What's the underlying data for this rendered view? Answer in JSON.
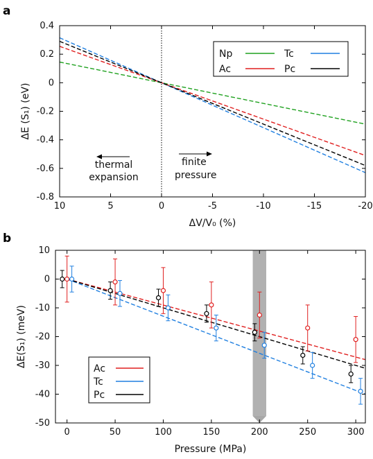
{
  "chart_data": [
    {
      "panel": "a",
      "type": "line",
      "xlabel": "ΔV/V₀ (%)",
      "ylabel": "ΔE (S₁) (eV)",
      "xlim": [
        10,
        -20
      ],
      "ylim": [
        -0.8,
        0.4
      ],
      "xticks": [
        10,
        5,
        0,
        -5,
        -10,
        -15,
        -20
      ],
      "xtick_labels": [
        "10",
        "5",
        "0",
        "-5",
        "-10",
        "-15",
        "-20"
      ],
      "yticks": [
        0.4,
        0.2,
        0,
        -0.2,
        -0.4,
        -0.6,
        -0.8
      ],
      "ytick_labels": [
        "0.4",
        "0.2",
        "0",
        "-0.2",
        "-0.4",
        "-0.6",
        "-0.8"
      ],
      "vline_x": 0,
      "annotations": [
        {
          "lines": [
            "thermal",
            "expansion"
          ],
          "arrow": "left"
        },
        {
          "lines": [
            "finite",
            "pressure"
          ],
          "arrow": "right"
        }
      ],
      "legend": {
        "placement": "top-right",
        "columns": 2
      },
      "series": [
        {
          "name": "Np",
          "color": "#1fa11f",
          "x": [
            10,
            -20
          ],
          "y": [
            0.145,
            -0.29
          ]
        },
        {
          "name": "Tc",
          "color": "#1f7fe0",
          "x": [
            10,
            -20
          ],
          "y": [
            0.315,
            -0.63
          ]
        },
        {
          "name": "Ac",
          "color": "#e01f1f",
          "x": [
            10,
            -20
          ],
          "y": [
            0.255,
            -0.51
          ]
        },
        {
          "name": "Pc",
          "color": "#000000",
          "x": [
            10,
            -20
          ],
          "y": [
            0.29,
            -0.58
          ]
        }
      ]
    },
    {
      "panel": "b",
      "type": "scatter",
      "xlabel": "Pressure (MPa)",
      "ylabel": "ΔE(S₁) (meV)",
      "xlim": [
        -12,
        310
      ],
      "ylim": [
        -50,
        10
      ],
      "xticks": [
        0,
        50,
        100,
        150,
        200,
        250,
        300
      ],
      "xtick_labels": [
        "0",
        "50",
        "100",
        "150",
        "200",
        "250",
        "300"
      ],
      "yticks": [
        10,
        0,
        -10,
        -20,
        -30,
        -40,
        -50
      ],
      "ytick_labels": [
        "10",
        "0",
        "-10",
        "-20",
        "-30",
        "-40",
        "-50"
      ],
      "highlight_band": {
        "x": [
          193,
          207
        ],
        "color": "#a8a8a8"
      },
      "legend": {
        "placement": "bottom-left"
      },
      "series": [
        {
          "name": "Ac",
          "color": "#e01f1f",
          "x": [
            0,
            50,
            100,
            150,
            200,
            250,
            300
          ],
          "y": [
            0,
            -1,
            -4,
            -9,
            -12.5,
            -17,
            -21
          ],
          "err": [
            8,
            8,
            8,
            8,
            8,
            8,
            8
          ],
          "fit": {
            "x": [
              0,
              310
            ],
            "y": [
              0,
              -28
            ]
          }
        },
        {
          "name": "Tc",
          "color": "#1f7fe0",
          "x": [
            5,
            55,
            105,
            155,
            205,
            255,
            305
          ],
          "y": [
            0,
            -5,
            -10,
            -17,
            -23,
            -30,
            -39
          ],
          "err": [
            4.5,
            4.5,
            4.5,
            4.5,
            4.5,
            4.5,
            4.5
          ],
          "fit": {
            "x": [
              0,
              310
            ],
            "y": [
              0,
              -40
            ]
          }
        },
        {
          "name": "Pc",
          "color": "#000000",
          "x": [
            -5,
            45,
            95,
            145,
            195,
            245,
            295
          ],
          "y": [
            0,
            -4,
            -6.5,
            -12,
            -18.5,
            -26.5,
            -33
          ],
          "err": [
            3,
            3,
            3,
            3,
            3,
            3,
            3
          ],
          "fit": {
            "x": [
              0,
              310
            ],
            "y": [
              0,
              -31
            ]
          }
        }
      ]
    }
  ]
}
